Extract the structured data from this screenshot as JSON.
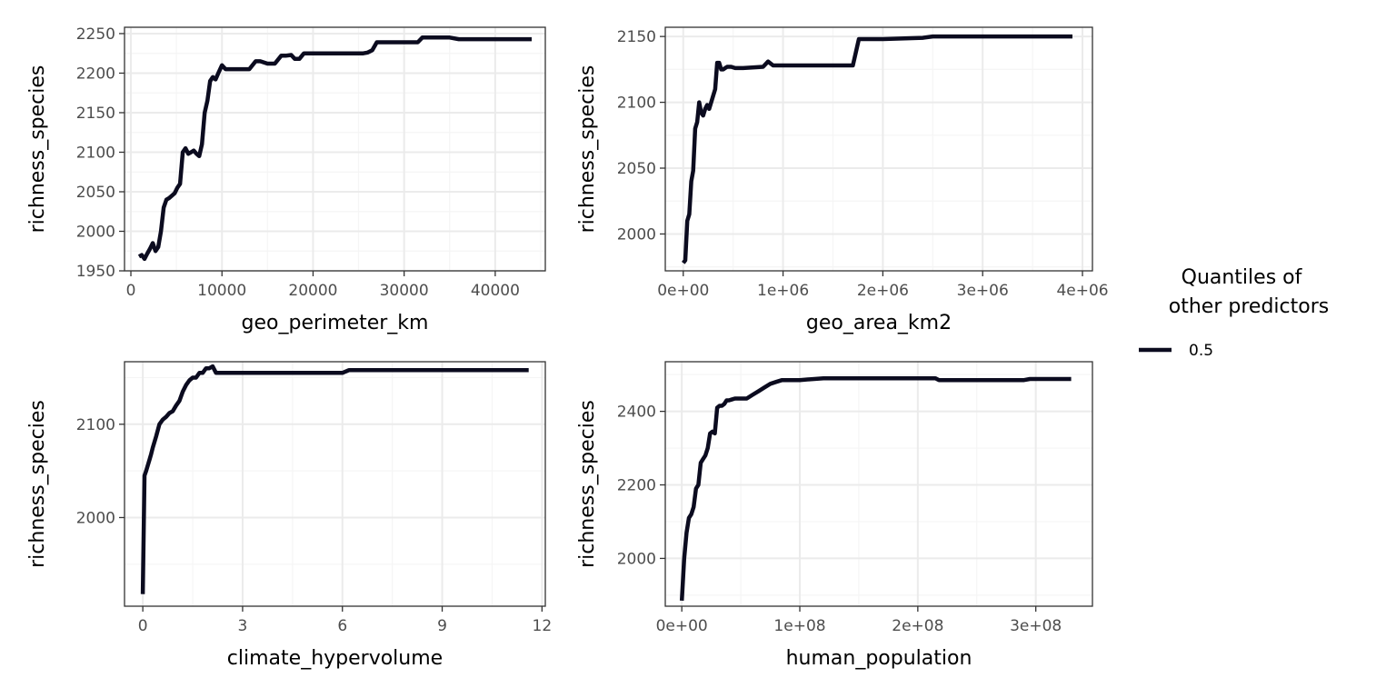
{
  "legend": {
    "title_line1": "Quantiles of",
    "title_line2": "other predictors",
    "items": [
      {
        "label": "0.5",
        "color": "#0b0b1f"
      }
    ]
  },
  "colors": {
    "line": "#0b0b1f",
    "panel_border": "#333333",
    "grid_major": "#ebebeb",
    "grid_minor": "#f5f5f5",
    "tick_text": "#4d4d4d"
  },
  "chart_data": [
    {
      "type": "line",
      "xlabel": "geo_perimeter_km",
      "ylabel": "richness_species",
      "xlim": [
        -700,
        45500
      ],
      "ylim": [
        1950,
        2258
      ],
      "xticks": [
        0,
        10000,
        20000,
        30000,
        40000
      ],
      "xtick_labels": [
        "0",
        "10000",
        "20000",
        "30000",
        "40000"
      ],
      "yticks": [
        1950,
        2000,
        2050,
        2100,
        2150,
        2200,
        2250
      ],
      "ytick_labels": [
        "1950",
        "2000",
        "2050",
        "2100",
        "2150",
        "2200",
        "2250"
      ],
      "x": [
        900,
        1200,
        1500,
        1800,
        2100,
        2400,
        2700,
        3000,
        3300,
        3600,
        3900,
        4200,
        4500,
        4800,
        5100,
        5400,
        5700,
        6000,
        6300,
        6600,
        6900,
        7200,
        7500,
        7800,
        8100,
        8400,
        8700,
        9000,
        9300,
        9600,
        10000,
        10400,
        10800,
        11200,
        12000,
        13000,
        13700,
        14200,
        15000,
        15800,
        16500,
        17000,
        17600,
        18000,
        18500,
        19000,
        20000,
        22000,
        24000,
        25500,
        26000,
        26500,
        27000,
        28000,
        30000,
        31500,
        32000,
        34000,
        35000,
        36000,
        40000,
        44000
      ],
      "y": [
        1968,
        1970,
        1965,
        1972,
        1978,
        1985,
        1975,
        1980,
        2000,
        2030,
        2040,
        2042,
        2045,
        2048,
        2055,
        2060,
        2100,
        2105,
        2098,
        2100,
        2102,
        2098,
        2095,
        2110,
        2150,
        2165,
        2190,
        2195,
        2192,
        2200,
        2210,
        2205,
        2205,
        2205,
        2205,
        2205,
        2215,
        2215,
        2212,
        2212,
        2222,
        2222,
        2223,
        2218,
        2218,
        2225,
        2225,
        2225,
        2225,
        2225,
        2226,
        2229,
        2239,
        2239,
        2239,
        2239,
        2245,
        2245,
        2245,
        2243,
        2243,
        2243
      ]
    },
    {
      "type": "line",
      "xlabel": "geo_area_km2",
      "ylabel": "richness_species",
      "xlim": [
        -180000,
        4100000
      ],
      "ylim": [
        1972,
        2157
      ],
      "xticks": [
        0,
        1000000,
        2000000,
        3000000,
        4000000
      ],
      "xtick_labels": [
        "0e+00",
        "1e+06",
        "2e+06",
        "3e+06",
        "4e+06"
      ],
      "yticks": [
        2000,
        2050,
        2100,
        2150
      ],
      "ytick_labels": [
        "2000",
        "2050",
        "2100",
        "2150"
      ],
      "x": [
        0,
        20000,
        40000,
        60000,
        80000,
        100000,
        120000,
        140000,
        160000,
        180000,
        200000,
        220000,
        240000,
        260000,
        280000,
        300000,
        320000,
        340000,
        360000,
        380000,
        400000,
        420000,
        440000,
        460000,
        480000,
        520000,
        600000,
        800000,
        850000,
        900000,
        1000000,
        1400000,
        1700000,
        1730000,
        1760000,
        2000000,
        2400000,
        2500000,
        3000000,
        3500000,
        3900000
      ],
      "y": [
        1978,
        1980,
        2010,
        2015,
        2040,
        2048,
        2080,
        2085,
        2100,
        2092,
        2090,
        2095,
        2098,
        2095,
        2100,
        2105,
        2110,
        2130,
        2130,
        2125,
        2125,
        2126,
        2127,
        2127,
        2127,
        2126,
        2126,
        2127,
        2131,
        2128,
        2128,
        2128,
        2128,
        2138,
        2148,
        2148,
        2149,
        2150,
        2150,
        2150,
        2150
      ]
    },
    {
      "type": "line",
      "xlabel": "climate_hypervolume",
      "ylabel": "richness_species",
      "xlim": [
        -0.55,
        12.1
      ],
      "ylim": [
        1905,
        2167
      ],
      "xticks": [
        0,
        3,
        6,
        9,
        12
      ],
      "xtick_labels": [
        "0",
        "3",
        "6",
        "9",
        "12"
      ],
      "yticks": [
        2000,
        2100
      ],
      "ytick_labels": [
        "2000",
        "2100"
      ],
      "x": [
        0,
        0.05,
        0.1,
        0.2,
        0.25,
        0.3,
        0.4,
        0.5,
        0.6,
        0.7,
        0.8,
        0.9,
        1.0,
        1.1,
        1.2,
        1.3,
        1.4,
        1.5,
        1.6,
        1.7,
        1.8,
        1.9,
        2.0,
        2.1,
        2.2,
        2.3,
        2.4,
        3.0,
        4.0,
        5.0,
        6.0,
        6.2,
        7.0,
        9.0,
        11.6
      ],
      "y": [
        1918,
        2045,
        2050,
        2062,
        2068,
        2075,
        2087,
        2100,
        2105,
        2108,
        2112,
        2114,
        2120,
        2125,
        2135,
        2142,
        2147,
        2150,
        2150,
        2155,
        2155,
        2160,
        2160,
        2162,
        2155,
        2155,
        2155,
        2155,
        2155,
        2155,
        2155,
        2158,
        2158,
        2158,
        2158
      ]
    },
    {
      "type": "line",
      "xlabel": "human_population",
      "ylabel": "richness_species",
      "xlim": [
        -14000000,
        348000000
      ],
      "ylim": [
        1870,
        2535
      ],
      "xticks": [
        0,
        100000000,
        200000000,
        300000000
      ],
      "xtick_labels": [
        "0e+00",
        "1e+08",
        "2e+08",
        "3e+08"
      ],
      "yticks": [
        2000,
        2200,
        2400
      ],
      "ytick_labels": [
        "2000",
        "2200",
        "2400"
      ],
      "x": [
        0,
        2000000,
        4000000,
        6000000,
        8000000,
        10000000,
        12000000,
        14000000,
        16000000,
        18000000,
        20000000,
        22000000,
        24000000,
        26000000,
        28000000,
        30000000,
        32000000,
        34000000,
        36000000,
        38000000,
        40000000,
        42000000,
        45000000,
        50000000,
        55000000,
        60000000,
        65000000,
        70000000,
        75000000,
        80000000,
        85000000,
        100000000,
        120000000,
        150000000,
        200000000,
        215000000,
        218000000,
        250000000,
        290000000,
        295000000,
        330000000
      ],
      "y": [
        1885,
        2000,
        2070,
        2110,
        2120,
        2140,
        2190,
        2200,
        2260,
        2270,
        2280,
        2300,
        2340,
        2345,
        2340,
        2410,
        2415,
        2415,
        2420,
        2430,
        2430,
        2432,
        2435,
        2435,
        2435,
        2445,
        2455,
        2465,
        2475,
        2480,
        2485,
        2485,
        2490,
        2490,
        2490,
        2490,
        2485,
        2485,
        2485,
        2488,
        2488
      ]
    }
  ]
}
